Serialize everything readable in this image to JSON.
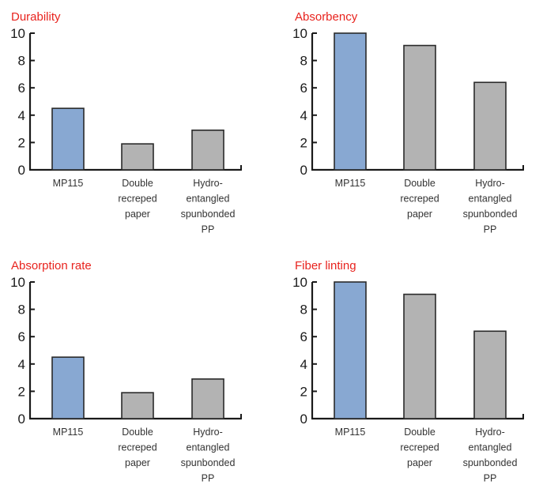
{
  "colors": {
    "highlight": "#88a8d2",
    "other": "#b3b3b3",
    "title": "#e8231e",
    "axis": "#1a1a1a"
  },
  "chart_data": [
    {
      "type": "bar",
      "title": "Durability",
      "categories": [
        "MP115",
        "Double recreped paper",
        "Hydro-entangled spunbonded PP"
      ],
      "category_lines": [
        [
          "MP115"
        ],
        [
          "Double",
          "recreped",
          "paper"
        ],
        [
          "Hydro-",
          "entangled",
          "spunbonded",
          "PP"
        ]
      ],
      "values": [
        4.5,
        1.9,
        2.9
      ],
      "ylim": [
        0,
        10
      ],
      "yticks": [
        0,
        2,
        4,
        6,
        8,
        10
      ],
      "xlabel": "",
      "ylabel": ""
    },
    {
      "type": "bar",
      "title": "Absorbency",
      "categories": [
        "MP115",
        "Double recreped paper",
        "Hydro-entangled spunbonded PP"
      ],
      "category_lines": [
        [
          "MP115"
        ],
        [
          "Double",
          "recreped",
          "paper"
        ],
        [
          "Hydro-",
          "entangled",
          "spunbonded",
          "PP"
        ]
      ],
      "values": [
        10,
        9.1,
        6.4
      ],
      "ylim": [
        0,
        10
      ],
      "yticks": [
        0,
        2,
        4,
        6,
        8,
        10
      ],
      "xlabel": "",
      "ylabel": ""
    },
    {
      "type": "bar",
      "title": "Absorption rate",
      "categories": [
        "MP115",
        "Double recreped paper",
        "Hydro-entangled spunbonded PP"
      ],
      "category_lines": [
        [
          "MP115"
        ],
        [
          "Double",
          "recreped",
          "paper"
        ],
        [
          "Hydro-",
          "entangled",
          "spunbonded",
          "PP"
        ]
      ],
      "values": [
        4.5,
        1.9,
        2.9
      ],
      "ylim": [
        0,
        10
      ],
      "yticks": [
        0,
        2,
        4,
        6,
        8,
        10
      ],
      "xlabel": "",
      "ylabel": ""
    },
    {
      "type": "bar",
      "title": "Fiber linting",
      "categories": [
        "MP115",
        "Double recreped paper",
        "Hydro-entangled spunbonded PP"
      ],
      "category_lines": [
        [
          "MP115"
        ],
        [
          "Double",
          "recreped",
          "paper"
        ],
        [
          "Hydro-",
          "entangled",
          "spunbonded",
          "PP"
        ]
      ],
      "values": [
        10,
        9.1,
        6.4
      ],
      "ylim": [
        0,
        10
      ],
      "yticks": [
        0,
        2,
        4,
        6,
        8,
        10
      ],
      "xlabel": "",
      "ylabel": ""
    }
  ]
}
